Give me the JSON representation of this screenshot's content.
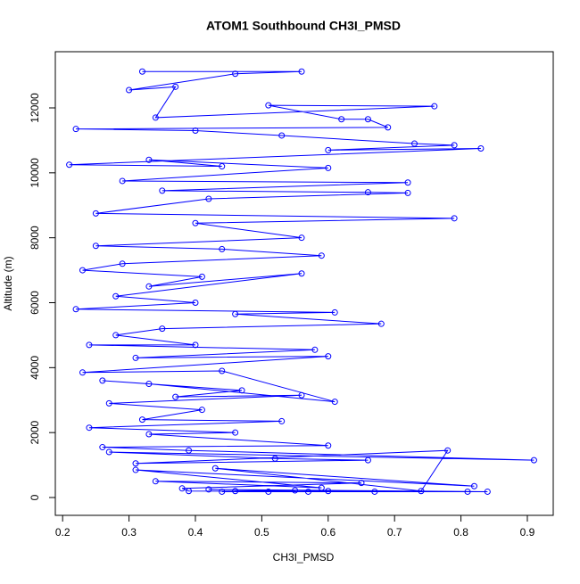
{
  "chart_data": {
    "type": "line",
    "title": "ATOM1 Southbound CH3I_PMSD",
    "x_label": "CH3I_PMSD",
    "y_label": "Altitude (m)",
    "color": "#0000ff",
    "markers": true,
    "x": [
      0.32,
      0.56,
      0.46,
      0.3,
      0.37,
      0.34,
      0.76,
      0.51,
      0.62,
      0.66,
      0.69,
      0.22,
      0.4,
      0.53,
      0.73,
      0.79,
      0.6,
      0.83,
      0.21,
      0.44,
      0.33,
      0.6,
      0.29,
      0.72,
      0.35,
      0.66,
      0.72,
      0.42,
      0.25,
      0.79,
      0.4,
      0.56,
      0.25,
      0.44,
      0.59,
      0.29,
      0.23,
      0.41,
      0.33,
      0.56,
      0.28,
      0.4,
      0.22,
      0.61,
      0.46,
      0.68,
      0.35,
      0.28,
      0.4,
      0.24,
      0.58,
      0.31,
      0.6,
      0.23,
      0.44,
      0.61,
      0.33,
      0.26,
      0.47,
      0.37,
      0.56,
      0.27,
      0.41,
      0.32,
      0.53,
      0.24,
      0.46,
      0.33,
      0.6,
      0.26,
      0.39,
      0.91,
      0.27,
      0.52,
      0.66,
      0.31,
      0.78,
      0.74,
      0.43,
      0.82,
      0.31,
      0.59,
      0.34,
      0.65,
      0.38,
      0.39,
      0.84,
      0.42,
      0.55,
      0.46,
      0.81,
      0.51,
      0.6,
      0.44,
      0.67,
      0.57
    ],
    "values": [
      13120,
      13120,
      13050,
      12550,
      12650,
      11700,
      12050,
      12080,
      11650,
      11650,
      11400,
      11350,
      11300,
      11150,
      10900,
      10850,
      10700,
      10750,
      10250,
      10200,
      10400,
      10150,
      9750,
      9700,
      9450,
      9400,
      9380,
      9200,
      8750,
      8600,
      8450,
      8000,
      7750,
      7650,
      7450,
      7200,
      7000,
      6800,
      6500,
      6900,
      6200,
      6000,
      5800,
      5700,
      5650,
      5350,
      5200,
      5000,
      4700,
      4700,
      4550,
      4300,
      4350,
      3850,
      3900,
      2950,
      3500,
      3600,
      3300,
      3100,
      3150,
      2900,
      2700,
      2400,
      2350,
      2150,
      2000,
      1950,
      1600,
      1550,
      1450,
      1150,
      1400,
      1200,
      1150,
      1050,
      1450,
      200,
      900,
      350,
      850,
      300,
      500,
      450,
      280,
      200,
      180,
      250,
      220,
      200,
      180,
      180,
      200,
      180,
      180,
      180
    ],
    "xlim": [
      0.189,
      0.939
    ],
    "ylim": [
      -549,
      13730
    ],
    "xticks": [
      0.2,
      0.3,
      0.4,
      0.5,
      0.6,
      0.7,
      0.8,
      0.9
    ],
    "yticks": [
      0,
      2000,
      4000,
      6000,
      8000,
      10000,
      12000
    ]
  }
}
